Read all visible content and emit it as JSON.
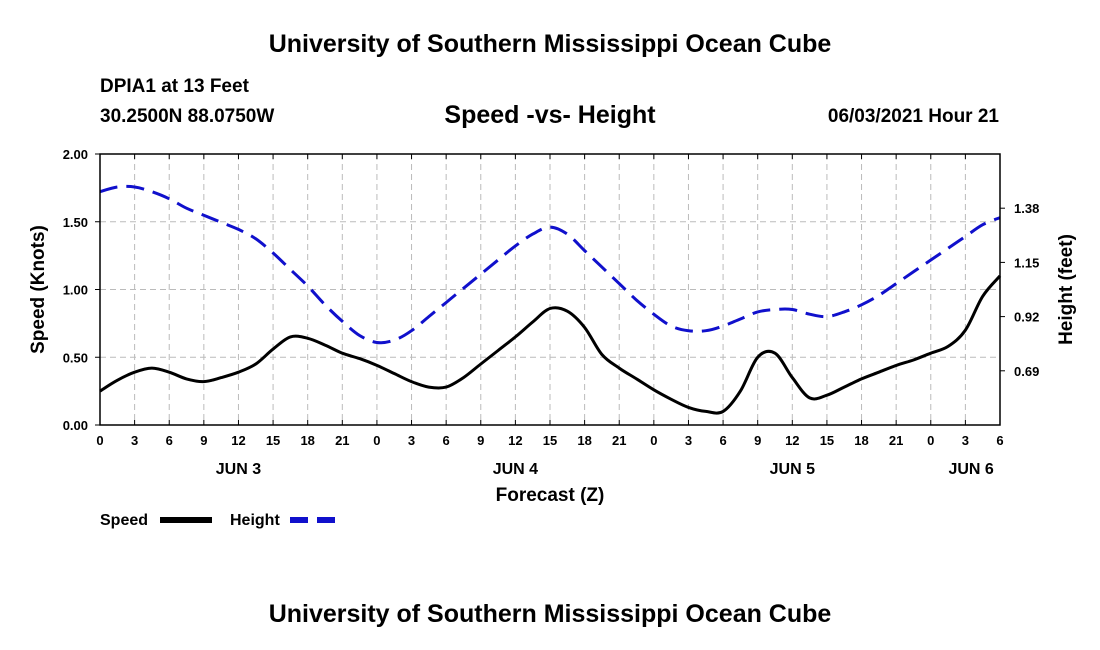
{
  "header": {
    "title_top": "University of Southern Mississippi Ocean Cube",
    "title_bottom": "University of Southern Mississippi Ocean Cube",
    "station": "DPIA1 at 13 Feet",
    "coords": "30.2500N  88.0750W",
    "date": "06/03/2021 Hour 21"
  },
  "colors": {
    "speed": "#000000",
    "height": "#1010cc",
    "grid": "#bbbbbb"
  },
  "chart_data": {
    "type": "line",
    "title": "Speed -vs- Height",
    "xlabel": "Forecast (Z)",
    "ylabel_left": "Speed (Knots)",
    "ylabel_right": "Height (feet)",
    "x_range": [
      0,
      78
    ],
    "x_ticks": [
      0,
      3,
      6,
      9,
      12,
      15,
      18,
      21,
      24,
      27,
      30,
      33,
      36,
      39,
      42,
      45,
      48,
      51,
      54,
      57,
      60,
      63,
      66,
      69,
      72,
      75,
      78
    ],
    "x_tick_labels": [
      "0",
      "3",
      "6",
      "9",
      "12",
      "15",
      "18",
      "21",
      "0",
      "3",
      "6",
      "9",
      "12",
      "15",
      "18",
      "21",
      "0",
      "3",
      "6",
      "9",
      "12",
      "15",
      "18",
      "21",
      "0",
      "3",
      "6"
    ],
    "day_labels": [
      {
        "x": 12,
        "label": "JUN 3"
      },
      {
        "x": 36,
        "label": "JUN 4"
      },
      {
        "x": 60,
        "label": "JUN 5"
      },
      {
        "x": 75.5,
        "label": "JUN 6"
      }
    ],
    "y_left": {
      "range": [
        0,
        2.0
      ],
      "ticks": [
        0,
        0.5,
        1.0,
        1.5,
        2.0
      ],
      "tick_labels": [
        "0.00",
        "0.50",
        "1.00",
        "1.50",
        "2.00"
      ]
    },
    "y_right": {
      "range": [
        0.46,
        1.61
      ],
      "ticks": [
        0.69,
        0.92,
        1.15,
        1.38
      ],
      "tick_labels": [
        "0.69",
        "0.92",
        "1.15",
        "1.38"
      ]
    },
    "legend": {
      "position": "bottom-left",
      "entries": [
        "Speed",
        "Height"
      ]
    },
    "series": [
      {
        "name": "Speed",
        "axis": "left",
        "style": "solid",
        "x": [
          0,
          1.5,
          3,
          4.5,
          6,
          7.5,
          9,
          10.5,
          12,
          13.5,
          15,
          16.5,
          18,
          19.5,
          21,
          22.5,
          24,
          25.5,
          27,
          28.5,
          30,
          31.5,
          33,
          34.5,
          36,
          37.5,
          39,
          40.5,
          42,
          43.5,
          45,
          46.5,
          48,
          49.5,
          51,
          52.5,
          54,
          55.5,
          57,
          58.5,
          60,
          61.5,
          63,
          64.5,
          66,
          67.5,
          69,
          70.5,
          72,
          73.5,
          75,
          76.5,
          78
        ],
        "values": [
          0.25,
          0.33,
          0.39,
          0.42,
          0.39,
          0.34,
          0.32,
          0.35,
          0.39,
          0.45,
          0.56,
          0.65,
          0.64,
          0.59,
          0.53,
          0.49,
          0.44,
          0.38,
          0.32,
          0.28,
          0.28,
          0.35,
          0.45,
          0.55,
          0.65,
          0.76,
          0.86,
          0.84,
          0.72,
          0.52,
          0.42,
          0.34,
          0.26,
          0.19,
          0.13,
          0.1,
          0.1,
          0.25,
          0.5,
          0.53,
          0.35,
          0.2,
          0.22,
          0.28,
          0.34,
          0.39,
          0.44,
          0.48,
          0.53,
          0.58,
          0.7,
          0.95,
          1.1
        ]
      },
      {
        "name": "Height",
        "axis": "right",
        "style": "dashed",
        "x": [
          0,
          1.5,
          3,
          4.5,
          6,
          7.5,
          9,
          10.5,
          12,
          13.5,
          15,
          16.5,
          18,
          19.5,
          21,
          22.5,
          24,
          25.5,
          27,
          28.5,
          30,
          31.5,
          33,
          34.5,
          36,
          37.5,
          39,
          40.5,
          42,
          43.5,
          45,
          46.5,
          48,
          49.5,
          51,
          52.5,
          54,
          55.5,
          57,
          58.5,
          60,
          61.5,
          63,
          64.5,
          66,
          67.5,
          69,
          70.5,
          72,
          73.5,
          75,
          76.5,
          78
        ],
        "values": [
          1.45,
          1.47,
          1.47,
          1.45,
          1.42,
          1.38,
          1.35,
          1.32,
          1.29,
          1.25,
          1.19,
          1.12,
          1.05,
          0.97,
          0.9,
          0.84,
          0.81,
          0.82,
          0.86,
          0.92,
          0.98,
          1.04,
          1.1,
          1.16,
          1.22,
          1.27,
          1.3,
          1.27,
          1.2,
          1.13,
          1.06,
          0.99,
          0.93,
          0.88,
          0.86,
          0.86,
          0.88,
          0.91,
          0.94,
          0.95,
          0.95,
          0.93,
          0.92,
          0.94,
          0.97,
          1.01,
          1.06,
          1.11,
          1.16,
          1.21,
          1.26,
          1.31,
          1.34
        ]
      }
    ]
  }
}
